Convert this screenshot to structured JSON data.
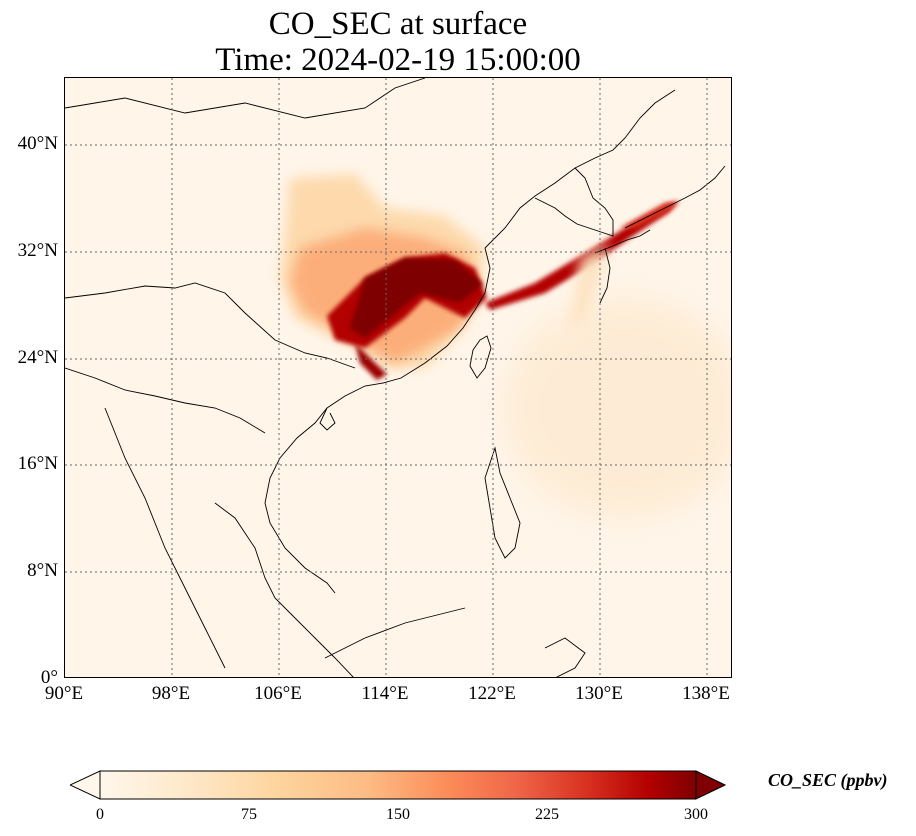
{
  "title": {
    "line1": "CO_SEC at surface",
    "line2": "Time: 2024-02-19 15:00:00"
  },
  "map": {
    "extent": {
      "lon": [
        90,
        140
      ],
      "lat": [
        0,
        45
      ]
    },
    "lon_ticks": [
      "90°E",
      "98°E",
      "106°E",
      "114°E",
      "122°E",
      "130°E",
      "138°E"
    ],
    "lat_ticks": [
      "0°",
      "8°N",
      "16°N",
      "24°N",
      "32°N",
      "40°N"
    ],
    "gridlines": true
  },
  "colorbar": {
    "label": "CO_SEC (ppbv)",
    "ticks": [
      "0",
      "75",
      "150",
      "225",
      "300"
    ],
    "range": [
      0,
      300
    ],
    "colormap": "OrRd",
    "extend": "both"
  },
  "colors": {
    "low": "#fff7ec",
    "mid": "#fc8d59",
    "high": "#7f0000"
  }
}
